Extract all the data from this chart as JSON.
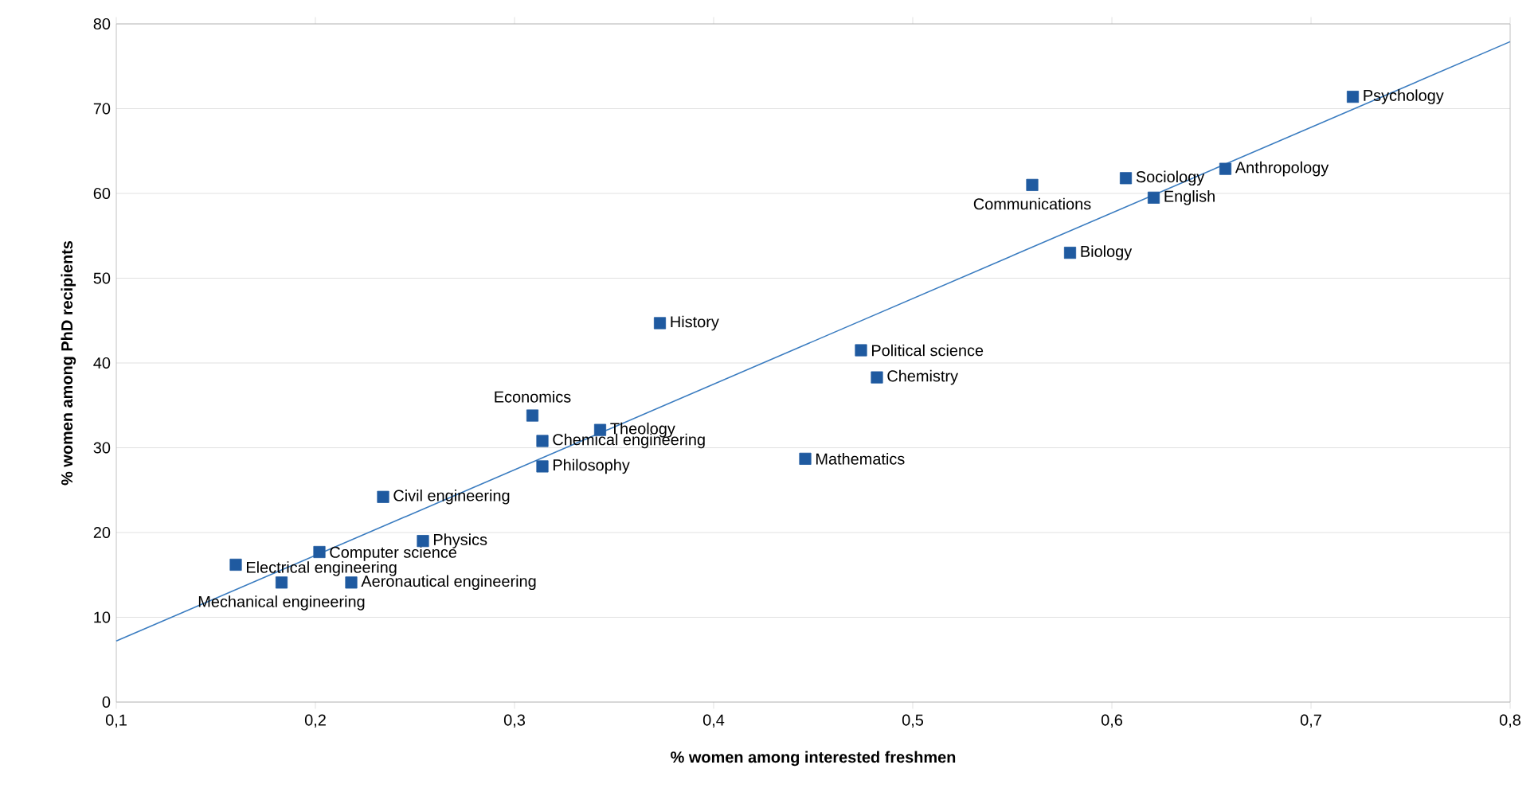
{
  "chart_data": {
    "type": "scatter",
    "xlabel": "% women among interested freshmen",
    "ylabel": "% women among PhD recipients",
    "xlim": [
      0.1,
      0.8
    ],
    "xticks": [
      {
        "value": 0.1,
        "label": "0,1"
      },
      {
        "value": 0.2,
        "label": "0,2"
      },
      {
        "value": 0.3,
        "label": "0,3"
      },
      {
        "value": 0.4,
        "label": "0,4"
      },
      {
        "value": 0.5,
        "label": "0,5"
      },
      {
        "value": 0.6,
        "label": "0,6"
      },
      {
        "value": 0.7,
        "label": "0,7"
      },
      {
        "value": 0.8,
        "label": "0,8"
      }
    ],
    "ylim": [
      0,
      80
    ],
    "yticks": [
      0,
      10,
      20,
      30,
      40,
      50,
      60,
      70,
      80
    ],
    "grid": "y",
    "marker": "square",
    "series": [
      {
        "color": "#1f5aa0",
        "x": [
          0.721,
          0.657,
          0.607,
          0.621,
          0.56,
          0.579,
          0.474,
          0.482,
          0.446,
          0.373,
          0.309,
          0.343,
          0.314,
          0.314,
          0.234,
          0.254,
          0.202,
          0.16,
          0.183,
          0.218
        ],
        "values": [
          71.4,
          62.9,
          61.8,
          59.5,
          61.0,
          53.0,
          41.5,
          38.3,
          28.7,
          44.7,
          33.8,
          32.1,
          30.8,
          27.8,
          24.2,
          19.0,
          17.7,
          16.2,
          14.1,
          14.1
        ]
      },
      {
        "type": "line",
        "color": "#3a7cc0",
        "marker": "none",
        "line_style": "solid",
        "x": [
          0.1,
          0.8
        ],
        "values": [
          7.2,
          77.9
        ]
      }
    ],
    "annotations": [
      {
        "text": "Psychology",
        "x": 0.721,
        "y": 71.4
      },
      {
        "text": "Anthropology",
        "x": 0.657,
        "y": 62.9
      },
      {
        "text": "Sociology",
        "x": 0.607,
        "y": 61.8
      },
      {
        "text": "English",
        "x": 0.621,
        "y": 59.5
      },
      {
        "text": "Communications",
        "x": 0.56,
        "y": 61.0
      },
      {
        "text": "Biology",
        "x": 0.579,
        "y": 53.0
      },
      {
        "text": "Political science",
        "x": 0.474,
        "y": 41.5
      },
      {
        "text": "Chemistry",
        "x": 0.482,
        "y": 38.3
      },
      {
        "text": "Mathematics",
        "x": 0.446,
        "y": 28.7
      },
      {
        "text": "History",
        "x": 0.373,
        "y": 44.7
      },
      {
        "text": "Economics",
        "x": 0.309,
        "y": 33.8
      },
      {
        "text": "Theology",
        "x": 0.343,
        "y": 32.1
      },
      {
        "text": "Chemical engineering",
        "x": 0.314,
        "y": 30.8
      },
      {
        "text": "Philosophy",
        "x": 0.314,
        "y": 27.8
      },
      {
        "text": "Civil engineering",
        "x": 0.234,
        "y": 24.2
      },
      {
        "text": "Physics",
        "x": 0.254,
        "y": 19.0
      },
      {
        "text": "Computer science",
        "x": 0.202,
        "y": 17.7
      },
      {
        "text": "Electrical engineering",
        "x": 0.16,
        "y": 16.2
      },
      {
        "text": "Mechanical engineering",
        "x": 0.183,
        "y": 14.1
      },
      {
        "text": "Aeronautical engineering",
        "x": 0.218,
        "y": 14.1
      }
    ]
  }
}
